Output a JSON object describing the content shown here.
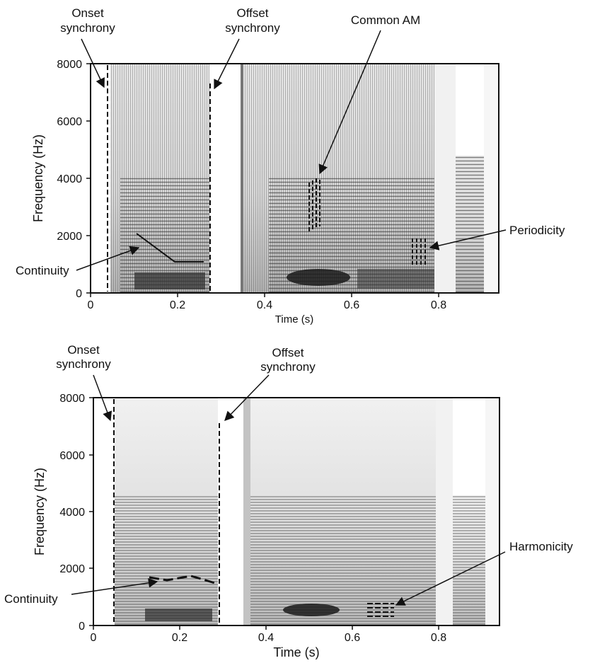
{
  "top_panel": {
    "xlabel": "Time (s)",
    "ylabel": "Frequency (Hz)",
    "xticks": [
      "0",
      "0.2",
      "0.4",
      "0.6",
      "0.8"
    ],
    "yticks": [
      "0",
      "2000",
      "4000",
      "6000",
      "8000"
    ],
    "annotations": {
      "onset_line1": "Onset",
      "onset_line2": "synchrony",
      "offset_line1": "Offset",
      "offset_line2": "synchrony",
      "common_am": "Common AM",
      "periodicity": "Periodicity",
      "continuity": "Continuity"
    }
  },
  "bottom_panel": {
    "xlabel": "Time (s)",
    "ylabel": "Frequency (Hz)",
    "xticks": [
      "0",
      "0.2",
      "0.4",
      "0.6",
      "0.8"
    ],
    "yticks": [
      "0",
      "2000",
      "4000",
      "6000",
      "8000"
    ],
    "annotations": {
      "onset_line1": "Onset",
      "onset_line2": "synchrony",
      "offset_line1": "Offset",
      "offset_line2": "synchrony",
      "harmonicity": "Harmonicity",
      "continuity": "Continuity"
    }
  },
  "colors": {
    "ink": "#111111",
    "spectrogram_dark": "#2a2a2a",
    "spectrogram_light": "#f4f4f4"
  }
}
